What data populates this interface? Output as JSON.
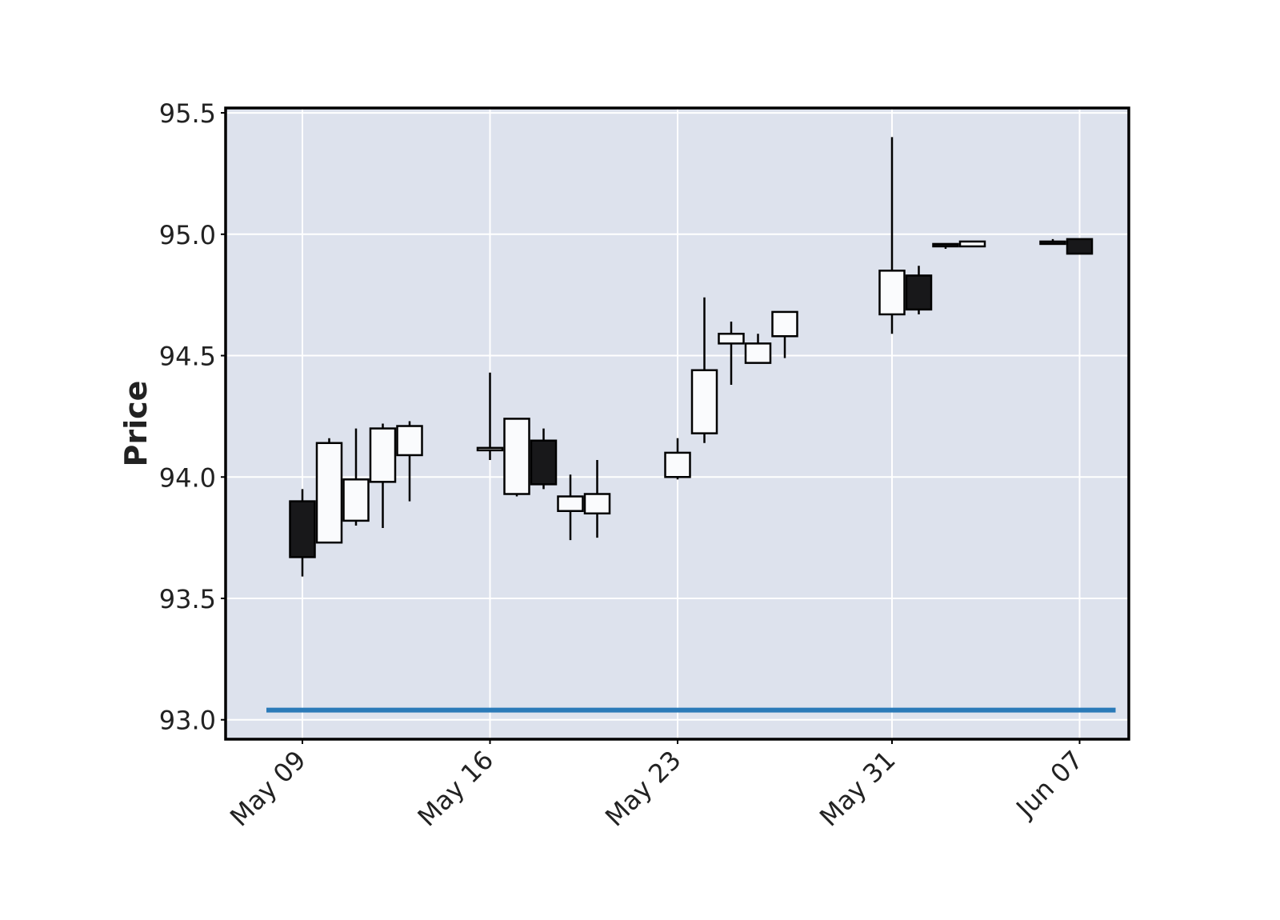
{
  "chart_data": {
    "type": "candlestick",
    "title": "",
    "xlabel": "",
    "ylabel": "Price",
    "ylim": [
      92.92,
      95.52
    ],
    "yticks": [
      "93.0",
      "93.5",
      "94.0",
      "94.5",
      "95.0",
      "95.5"
    ],
    "xticks": [
      {
        "date": "2022-05-09",
        "label": "May 09"
      },
      {
        "date": "2022-05-16",
        "label": "May 16"
      },
      {
        "date": "2022-05-23",
        "label": "May 23"
      },
      {
        "date": "2022-05-31",
        "label": "May 31"
      },
      {
        "date": "2022-06-07",
        "label": "Jun 07"
      }
    ],
    "grid": true,
    "colors": {
      "plot_background": "#dde2ed",
      "grid": "#ffffff",
      "up_fill": "#fafbfd",
      "down_fill": "#18181a",
      "edge": "#000000",
      "hline": "#2a7ab8"
    },
    "candles": [
      {
        "date": "2022-05-09",
        "open": 93.9,
        "high": 93.95,
        "low": 93.59,
        "close": 93.67
      },
      {
        "date": "2022-05-10",
        "open": 93.73,
        "high": 94.16,
        "low": 93.73,
        "close": 94.14
      },
      {
        "date": "2022-05-11",
        "open": 93.82,
        "high": 94.2,
        "low": 93.8,
        "close": 93.99
      },
      {
        "date": "2022-05-12",
        "open": 93.98,
        "high": 94.22,
        "low": 93.79,
        "close": 94.2
      },
      {
        "date": "2022-05-13",
        "open": 94.09,
        "high": 94.23,
        "low": 93.9,
        "close": 94.21
      },
      {
        "date": "2022-05-16",
        "open": 94.11,
        "high": 94.43,
        "low": 94.07,
        "close": 94.12
      },
      {
        "date": "2022-05-17",
        "open": 93.93,
        "high": 94.24,
        "low": 93.92,
        "close": 94.24
      },
      {
        "date": "2022-05-18",
        "open": 94.15,
        "high": 94.2,
        "low": 93.95,
        "close": 93.97
      },
      {
        "date": "2022-05-19",
        "open": 93.86,
        "high": 94.01,
        "low": 93.74,
        "close": 93.92
      },
      {
        "date": "2022-05-20",
        "open": 93.85,
        "high": 94.07,
        "low": 93.75,
        "close": 93.93
      },
      {
        "date": "2022-05-23",
        "open": 94.0,
        "high": 94.16,
        "low": 93.99,
        "close": 94.1
      },
      {
        "date": "2022-05-24",
        "open": 94.18,
        "high": 94.74,
        "low": 94.14,
        "close": 94.44
      },
      {
        "date": "2022-05-25",
        "open": 94.55,
        "high": 94.64,
        "low": 94.38,
        "close": 94.59
      },
      {
        "date": "2022-05-26",
        "open": 94.47,
        "high": 94.59,
        "low": 94.47,
        "close": 94.55
      },
      {
        "date": "2022-05-27",
        "open": 94.58,
        "high": 94.68,
        "low": 94.49,
        "close": 94.68
      },
      {
        "date": "2022-05-31",
        "open": 94.67,
        "high": 95.4,
        "low": 94.59,
        "close": 94.85
      },
      {
        "date": "2022-06-01",
        "open": 94.83,
        "high": 94.87,
        "low": 94.67,
        "close": 94.69
      },
      {
        "date": "2022-06-02",
        "open": 94.96,
        "high": 94.96,
        "low": 94.94,
        "close": 94.95
      },
      {
        "date": "2022-06-03",
        "open": 94.95,
        "high": 94.97,
        "low": 94.95,
        "close": 94.97
      },
      {
        "date": "2022-06-06",
        "open": 94.97,
        "high": 94.98,
        "low": 94.96,
        "close": 94.96
      },
      {
        "date": "2022-06-07",
        "open": 94.98,
        "high": 94.98,
        "low": 94.92,
        "close": 94.92
      }
    ],
    "hline": {
      "value": 93.04
    }
  }
}
